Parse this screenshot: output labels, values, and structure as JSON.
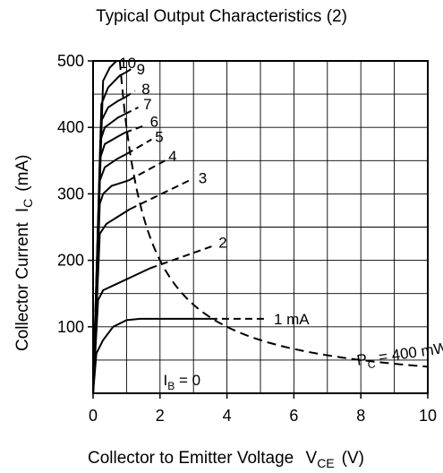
{
  "chart_data": {
    "type": "line",
    "title": "Typical Output Characteristics (2)",
    "xlabel": "Collector to Emitter Voltage",
    "xsymbol": "V",
    "xsymbol_sub": "CE",
    "xunit": "(V)",
    "ylabel": "Collector Current",
    "ysymbol": "I",
    "ysymbol_sub": "C",
    "yunit": "(mA)",
    "xlim": [
      0,
      10
    ],
    "ylim": [
      0,
      500
    ],
    "x_ticks": [
      0,
      2,
      4,
      6,
      8,
      10
    ],
    "x_tick_labels": [
      "0",
      "2",
      "4",
      "6",
      "8",
      "10"
    ],
    "y_ticks": [
      100,
      200,
      300,
      400,
      500
    ],
    "y_tick_labels": [
      "100",
      "200",
      "300",
      "400",
      "500"
    ],
    "grid": true,
    "series": [
      {
        "name": "1 mA",
        "label_anchor": [
          5.4,
          112
        ],
        "solid": [
          [
            0,
            0
          ],
          [
            0.1,
            60
          ],
          [
            0.3,
            80
          ],
          [
            0.6,
            100
          ],
          [
            1.0,
            110
          ],
          [
            1.4,
            112
          ],
          [
            3.5,
            112
          ]
        ],
        "dashed": [
          [
            3.5,
            112
          ],
          [
            5.2,
            112
          ]
        ]
      },
      {
        "name": "2",
        "label_anchor": [
          3.75,
          227
        ],
        "solid": [
          [
            0,
            0
          ],
          [
            0.15,
            140
          ],
          [
            0.3,
            155
          ],
          [
            1.7,
            188
          ]
        ],
        "dashed": [
          [
            1.7,
            188
          ],
          [
            3.6,
            222
          ]
        ]
      },
      {
        "name": "3",
        "label_anchor": [
          3.15,
          324
        ],
        "solid": [
          [
            0,
            0
          ],
          [
            0.2,
            240
          ],
          [
            0.4,
            255
          ],
          [
            1.1,
            277
          ]
        ],
        "dashed": [
          [
            1.1,
            277
          ],
          [
            2.95,
            322
          ]
        ]
      },
      {
        "name": "4",
        "label_anchor": [
          2.25,
          357
        ],
        "solid": [
          [
            0,
            0
          ],
          [
            0.2,
            285
          ],
          [
            0.3,
            300
          ],
          [
            0.55,
            312
          ],
          [
            1.05,
            320
          ]
        ],
        "dashed": [
          [
            1.05,
            320
          ],
          [
            2.15,
            350
          ]
        ]
      },
      {
        "name": "5",
        "label_anchor": [
          1.85,
          386
        ],
        "solid": [
          [
            0,
            0
          ],
          [
            0.2,
            320
          ],
          [
            0.35,
            340
          ],
          [
            0.7,
            352
          ],
          [
            1.0,
            360
          ]
        ],
        "dashed": [
          [
            1.0,
            360
          ],
          [
            1.75,
            382
          ]
        ]
      },
      {
        "name": "6",
        "label_anchor": [
          1.7,
          409
        ],
        "solid": [
          [
            0,
            0
          ],
          [
            0.22,
            355
          ],
          [
            0.35,
            375
          ],
          [
            0.7,
            385
          ],
          [
            0.95,
            392
          ]
        ],
        "dashed": [
          [
            0.95,
            392
          ],
          [
            1.6,
            404
          ]
        ]
      },
      {
        "name": "7",
        "label_anchor": [
          1.5,
          435
        ],
        "solid": [
          [
            0,
            0
          ],
          [
            0.22,
            380
          ],
          [
            0.35,
            400
          ],
          [
            0.75,
            415
          ],
          [
            0.95,
            420
          ]
        ],
        "dashed": [
          [
            0.95,
            420
          ],
          [
            1.35,
            430
          ]
        ]
      },
      {
        "name": "8",
        "label_anchor": [
          1.45,
          458
        ],
        "solid": [
          [
            0,
            0
          ],
          [
            0.25,
            410
          ],
          [
            0.45,
            430
          ],
          [
            0.75,
            440
          ],
          [
            0.95,
            445
          ]
        ],
        "dashed": [
          [
            0.95,
            445
          ],
          [
            1.25,
            455
          ]
        ]
      },
      {
        "name": "9",
        "label_anchor": [
          1.3,
          488
        ],
        "solid": [
          [
            0,
            0
          ],
          [
            0.25,
            435
          ],
          [
            0.45,
            460
          ],
          [
            0.8,
            478
          ],
          [
            0.95,
            482
          ]
        ],
        "dashed": [
          [
            0.95,
            482
          ],
          [
            1.15,
            488
          ]
        ]
      },
      {
        "name": "10",
        "label_anchor": [
          0.78,
          497
        ],
        "solid": [
          [
            0,
            0
          ],
          [
            0.3,
            470
          ],
          [
            0.5,
            490
          ],
          [
            0.7,
            500
          ]
        ],
        "dashed": []
      }
    ],
    "annotations": [
      {
        "text": "I",
        "sub": "B",
        "rest": " = 0",
        "x": 2.1,
        "y": 12
      }
    ],
    "power_curve": {
      "label": "P",
      "label_sub": "C",
      "label_rest": " = 400 mW",
      "label_anchor": [
        7.9,
        42
      ],
      "power_mw": 400,
      "x_from": 0.8,
      "x_to": 10
    }
  }
}
